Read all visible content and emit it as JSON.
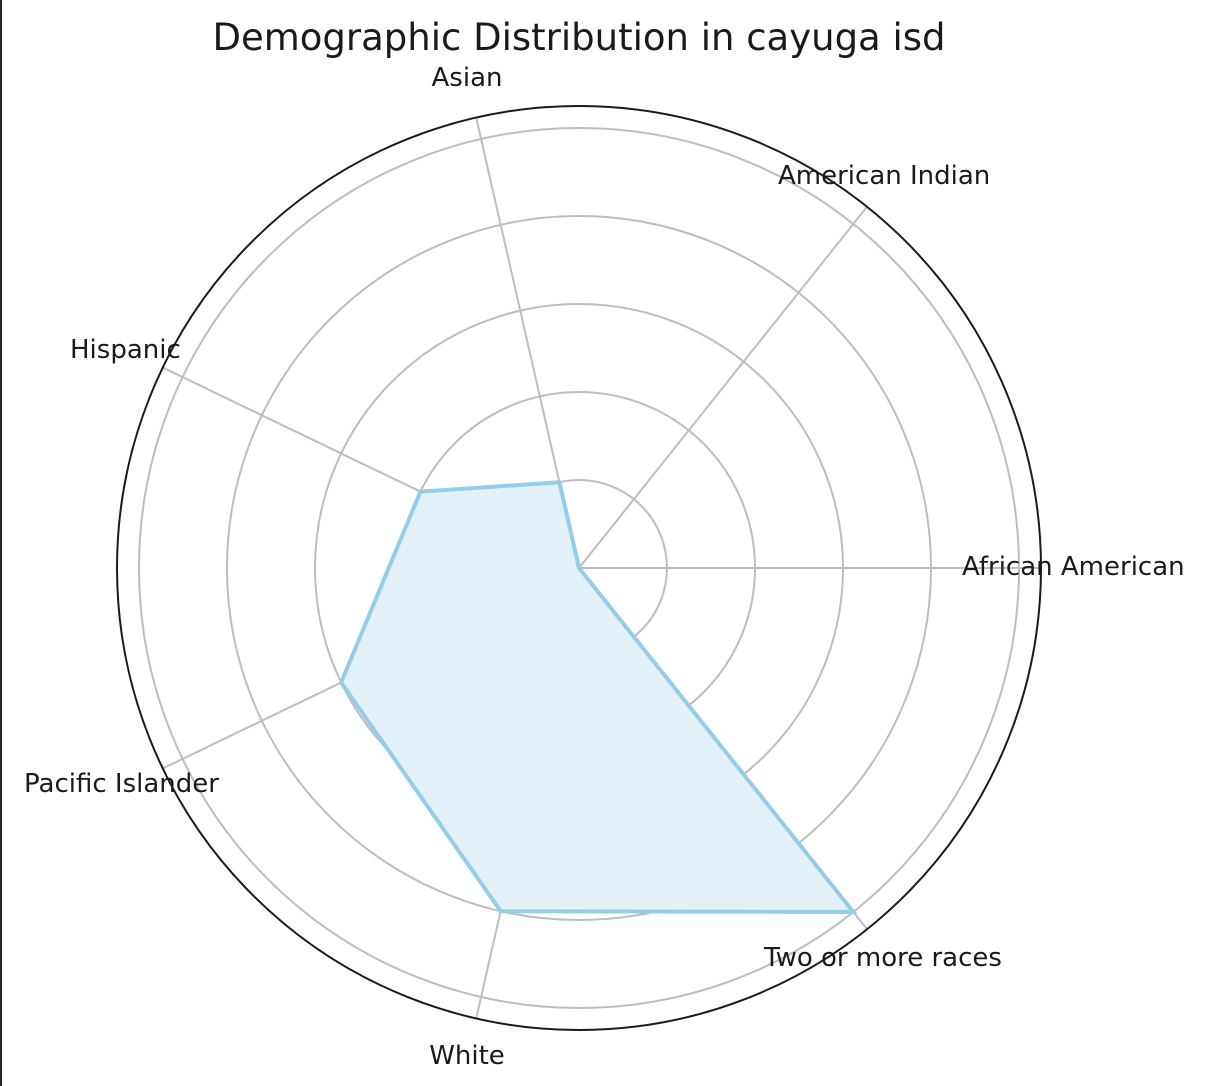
{
  "chart_data": {
    "type": "radar",
    "title": "Demographic Distribution in cayuga isd",
    "categories": [
      "African American",
      "American Indian",
      "Asian",
      "Hispanic",
      "Pacific Islander",
      "White",
      "Two or more races"
    ],
    "series": [
      {
        "values": [
          0,
          0,
          1,
          2,
          3,
          4,
          5
        ]
      }
    ],
    "rlim": [
      0,
      5.25
    ],
    "r_gridlines": [
      1,
      2,
      3,
      4,
      5
    ],
    "grid": true,
    "colors": {
      "line": "#94cde8",
      "fill": "#e2f0f8",
      "grid": "#bdbdbd",
      "outer_circle": "#1a1a1a"
    }
  }
}
